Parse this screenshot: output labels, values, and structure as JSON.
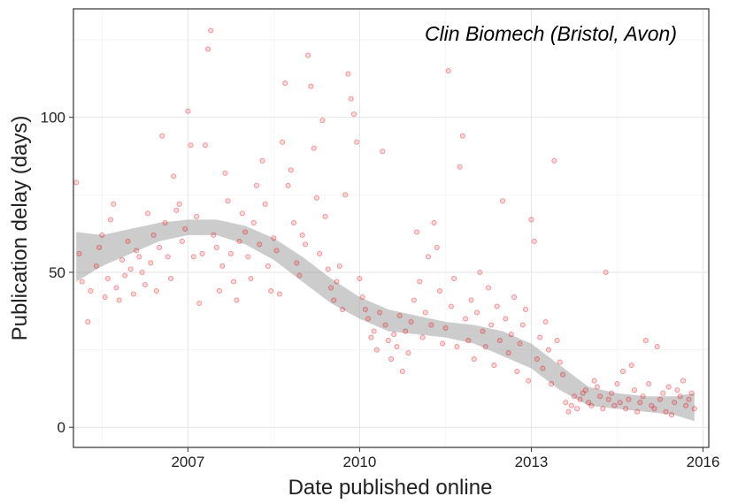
{
  "chart_data": {
    "type": "scatter",
    "title": "Clin Biomech (Bristol, Avon)",
    "xlabel": "Date published online",
    "ylabel": "Publication delay (days)",
    "x_unit": "year",
    "xlim": [
      2005.0,
      2016.1
    ],
    "ylim": [
      -6.5,
      135
    ],
    "x_ticks": [
      2007,
      2010,
      2013,
      2016
    ],
    "x_tick_labels": [
      "2007",
      "2010",
      "2013",
      "2016"
    ],
    "y_ticks": [
      0,
      50,
      100
    ],
    "y_tick_labels": [
      "0",
      "50",
      "100"
    ],
    "grid": true,
    "legend": "none",
    "point_color": "#e8000b",
    "band_color": "#999999",
    "series": [
      {
        "kind": "scatter",
        "points": [
          [
            2005.05,
            79
          ],
          [
            2005.1,
            56
          ],
          [
            2005.15,
            47
          ],
          [
            2005.25,
            34
          ],
          [
            2005.3,
            44
          ],
          [
            2005.4,
            52
          ],
          [
            2005.45,
            58
          ],
          [
            2005.5,
            62
          ],
          [
            2005.55,
            42
          ],
          [
            2005.6,
            48
          ],
          [
            2005.65,
            67
          ],
          [
            2005.7,
            72
          ],
          [
            2005.75,
            45
          ],
          [
            2005.8,
            41
          ],
          [
            2005.85,
            54
          ],
          [
            2005.9,
            49
          ],
          [
            2005.95,
            60
          ],
          [
            2006.0,
            51
          ],
          [
            2006.05,
            43
          ],
          [
            2006.1,
            57
          ],
          [
            2006.15,
            55
          ],
          [
            2006.2,
            50
          ],
          [
            2006.25,
            46
          ],
          [
            2006.3,
            69
          ],
          [
            2006.35,
            53
          ],
          [
            2006.4,
            62
          ],
          [
            2006.45,
            44
          ],
          [
            2006.5,
            58
          ],
          [
            2006.55,
            94
          ],
          [
            2006.6,
            66
          ],
          [
            2006.65,
            55
          ],
          [
            2006.7,
            48
          ],
          [
            2006.75,
            81
          ],
          [
            2006.8,
            70
          ],
          [
            2006.85,
            72
          ],
          [
            2006.9,
            60
          ],
          [
            2006.95,
            64
          ],
          [
            2007.0,
            102
          ],
          [
            2007.05,
            91
          ],
          [
            2007.1,
            55
          ],
          [
            2007.15,
            68
          ],
          [
            2007.2,
            40
          ],
          [
            2007.25,
            56
          ],
          [
            2007.3,
            91
          ],
          [
            2007.35,
            122
          ],
          [
            2007.4,
            128
          ],
          [
            2007.45,
            62
          ],
          [
            2007.5,
            58
          ],
          [
            2007.55,
            44
          ],
          [
            2007.6,
            52
          ],
          [
            2007.65,
            82
          ],
          [
            2007.7,
            73
          ],
          [
            2007.75,
            56
          ],
          [
            2007.8,
            47
          ],
          [
            2007.85,
            41
          ],
          [
            2007.9,
            60
          ],
          [
            2007.95,
            69
          ],
          [
            2008.0,
            63
          ],
          [
            2008.05,
            55
          ],
          [
            2008.1,
            48
          ],
          [
            2008.15,
            66
          ],
          [
            2008.2,
            78
          ],
          [
            2008.25,
            59
          ],
          [
            2008.3,
            86
          ],
          [
            2008.35,
            72
          ],
          [
            2008.4,
            52
          ],
          [
            2008.45,
            44
          ],
          [
            2008.5,
            61
          ],
          [
            2008.55,
            57
          ],
          [
            2008.6,
            43
          ],
          [
            2008.65,
            92
          ],
          [
            2008.7,
            111
          ],
          [
            2008.75,
            78
          ],
          [
            2008.8,
            83
          ],
          [
            2008.85,
            66
          ],
          [
            2008.9,
            53
          ],
          [
            2008.95,
            49
          ],
          [
            2009.0,
            62
          ],
          [
            2009.05,
            59
          ],
          [
            2009.1,
            120
          ],
          [
            2009.15,
            110
          ],
          [
            2009.2,
            90
          ],
          [
            2009.25,
            74
          ],
          [
            2009.3,
            56
          ],
          [
            2009.35,
            99
          ],
          [
            2009.4,
            68
          ],
          [
            2009.45,
            51
          ],
          [
            2009.5,
            45
          ],
          [
            2009.55,
            41
          ],
          [
            2009.6,
            47
          ],
          [
            2009.65,
            52
          ],
          [
            2009.7,
            38
          ],
          [
            2009.75,
            75
          ],
          [
            2009.8,
            114
          ],
          [
            2009.85,
            106
          ],
          [
            2009.9,
            101
          ],
          [
            2009.95,
            92
          ],
          [
            2010.0,
            48
          ],
          [
            2010.05,
            42
          ],
          [
            2010.1,
            38
          ],
          [
            2010.15,
            35
          ],
          [
            2010.2,
            29
          ],
          [
            2010.25,
            31
          ],
          [
            2010.3,
            25
          ],
          [
            2010.35,
            37
          ],
          [
            2010.4,
            89
          ],
          [
            2010.45,
            33
          ],
          [
            2010.5,
            28
          ],
          [
            2010.55,
            22
          ],
          [
            2010.6,
            30
          ],
          [
            2010.65,
            26
          ],
          [
            2010.7,
            36
          ],
          [
            2010.75,
            18
          ],
          [
            2010.8,
            31
          ],
          [
            2010.85,
            24
          ],
          [
            2010.9,
            34
          ],
          [
            2010.95,
            41
          ],
          [
            2011.0,
            63
          ],
          [
            2011.05,
            47
          ],
          [
            2011.1,
            29
          ],
          [
            2011.15,
            37
          ],
          [
            2011.2,
            55
          ],
          [
            2011.25,
            33
          ],
          [
            2011.3,
            66
          ],
          [
            2011.35,
            58
          ],
          [
            2011.4,
            44
          ],
          [
            2011.45,
            27
          ],
          [
            2011.5,
            32
          ],
          [
            2011.55,
            115
          ],
          [
            2011.6,
            39
          ],
          [
            2011.65,
            48
          ],
          [
            2011.7,
            26
          ],
          [
            2011.75,
            84
          ],
          [
            2011.8,
            94
          ],
          [
            2011.85,
            35
          ],
          [
            2011.9,
            28
          ],
          [
            2011.95,
            41
          ],
          [
            2012.0,
            22
          ],
          [
            2012.05,
            37
          ],
          [
            2012.1,
            50
          ],
          [
            2012.15,
            31
          ],
          [
            2012.2,
            26
          ],
          [
            2012.25,
            45
          ],
          [
            2012.3,
            33
          ],
          [
            2012.35,
            20
          ],
          [
            2012.4,
            39
          ],
          [
            2012.45,
            28
          ],
          [
            2012.5,
            73
          ],
          [
            2012.55,
            35
          ],
          [
            2012.6,
            24
          ],
          [
            2012.65,
            30
          ],
          [
            2012.7,
            42
          ],
          [
            2012.75,
            18
          ],
          [
            2012.8,
            27
          ],
          [
            2012.85,
            33
          ],
          [
            2012.9,
            38
          ],
          [
            2012.95,
            15
          ],
          [
            2013.0,
            67
          ],
          [
            2013.05,
            60
          ],
          [
            2013.1,
            22
          ],
          [
            2013.15,
            29
          ],
          [
            2013.2,
            19
          ],
          [
            2013.25,
            34
          ],
          [
            2013.3,
            25
          ],
          [
            2013.35,
            14
          ],
          [
            2013.4,
            86
          ],
          [
            2013.45,
            28
          ],
          [
            2013.5,
            21
          ],
          [
            2013.55,
            17
          ],
          [
            2013.6,
            8
          ],
          [
            2013.65,
            5
          ],
          [
            2013.7,
            7
          ],
          [
            2013.75,
            10
          ],
          [
            2013.8,
            6
          ],
          [
            2013.85,
            9
          ],
          [
            2013.9,
            11
          ],
          [
            2013.95,
            12
          ],
          [
            2014.0,
            8
          ],
          [
            2014.05,
            7
          ],
          [
            2014.1,
            15
          ],
          [
            2014.15,
            13
          ],
          [
            2014.2,
            10
          ],
          [
            2014.25,
            6
          ],
          [
            2014.3,
            50
          ],
          [
            2014.35,
            9
          ],
          [
            2014.4,
            11
          ],
          [
            2014.45,
            7
          ],
          [
            2014.5,
            14
          ],
          [
            2014.55,
            8
          ],
          [
            2014.6,
            18
          ],
          [
            2014.65,
            6
          ],
          [
            2014.7,
            9
          ],
          [
            2014.75,
            20
          ],
          [
            2014.8,
            12
          ],
          [
            2014.85,
            5
          ],
          [
            2014.9,
            8
          ],
          [
            2014.95,
            10
          ],
          [
            2015.0,
            28
          ],
          [
            2015.05,
            14
          ],
          [
            2015.1,
            7
          ],
          [
            2015.15,
            6
          ],
          [
            2015.2,
            26
          ],
          [
            2015.25,
            9
          ],
          [
            2015.3,
            11
          ],
          [
            2015.35,
            5
          ],
          [
            2015.4,
            13
          ],
          [
            2015.45,
            4
          ],
          [
            2015.5,
            8
          ],
          [
            2015.55,
            12
          ],
          [
            2015.6,
            10
          ],
          [
            2015.65,
            15
          ],
          [
            2015.7,
            7
          ],
          [
            2015.75,
            9
          ],
          [
            2015.8,
            11
          ],
          [
            2015.85,
            6
          ]
        ]
      },
      {
        "kind": "smooth_band",
        "x": [
          2005.05,
          2005.5,
          2006.0,
          2006.5,
          2007.0,
          2007.5,
          2008.0,
          2008.5,
          2009.0,
          2009.5,
          2010.0,
          2010.5,
          2011.0,
          2011.5,
          2012.0,
          2012.5,
          2013.0,
          2013.5,
          2014.0,
          2014.5,
          2015.0,
          2015.5,
          2015.85
        ],
        "upper": [
          63,
          62,
          64,
          66,
          67,
          67,
          65,
          61,
          55,
          48,
          42,
          38,
          36,
          34,
          33,
          31,
          27,
          20,
          13,
          11,
          10,
          10,
          11
        ],
        "lower": [
          47,
          52,
          56,
          60,
          62,
          62,
          59,
          54,
          47,
          40,
          35,
          31,
          30,
          29,
          27,
          23,
          19,
          12,
          7,
          6,
          5,
          4,
          2
        ]
      }
    ]
  }
}
